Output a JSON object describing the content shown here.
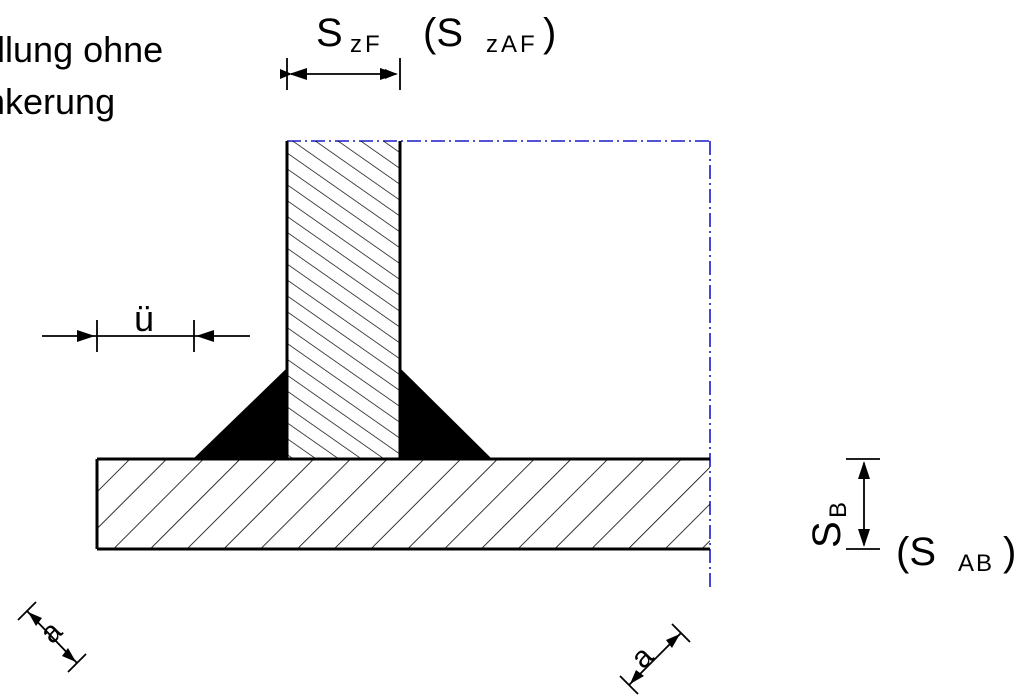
{
  "caption": {
    "line1": "dlung ohne",
    "line2": "nkerung"
  },
  "labels": {
    "szf_main": "S",
    "szf_sub": "zF",
    "szaf_open": "(S",
    "szaf_sub": "zAF",
    "szaf_close": ")",
    "overlap": "ü",
    "sb_main": "S",
    "sb_sub": "B",
    "sab_open": "(S",
    "sab_sub": "AB",
    "sab_close": ")",
    "throat_left": "a",
    "throat_right": "a"
  },
  "colors": {
    "line": "#000000",
    "boundary": "#1a1acc"
  }
}
